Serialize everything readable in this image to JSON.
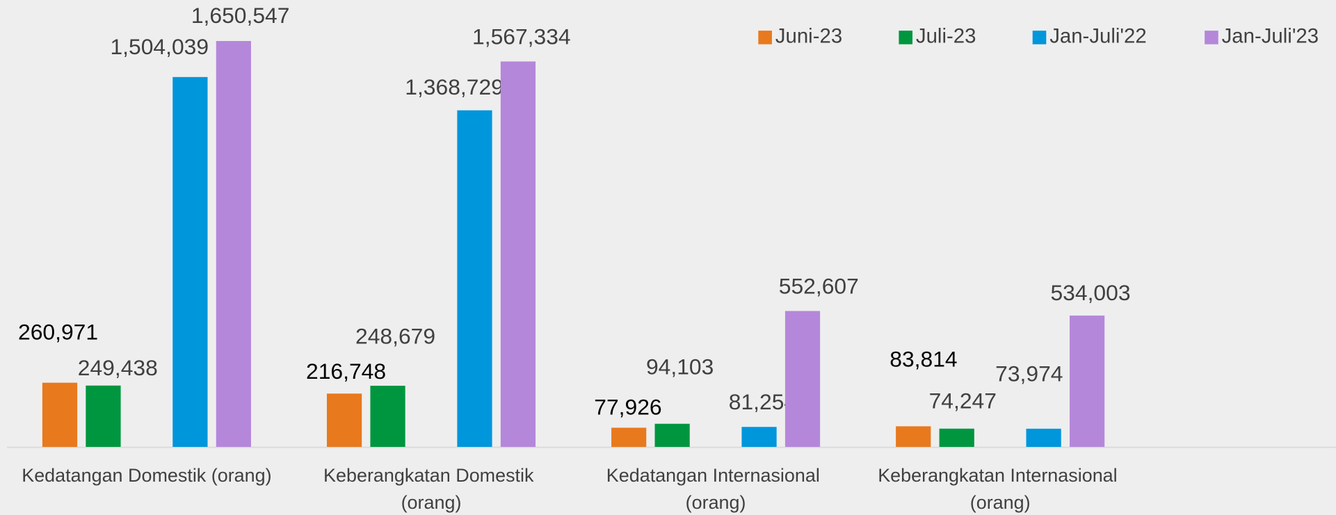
{
  "chart_data": {
    "type": "bar",
    "categories": [
      "Kedatangan Domestik (orang)",
      "Keberangkatan Domestik (orang)",
      "Kedatangan Internasional (orang)",
      "Keberangkatan Internasional (orang)"
    ],
    "series": [
      {
        "name": "Juni-23",
        "color": "#e8791d",
        "values": [
          260971,
          216748,
          77926,
          83814
        ],
        "value_labels": [
          "260,971",
          "216,748",
          "77,926",
          "83,814"
        ]
      },
      {
        "name": "Juli-23",
        "color": "#00963f",
        "values": [
          249438,
          248679,
          94103,
          74247
        ],
        "value_labels": [
          "249,438",
          "248,679",
          "94,103",
          "74,247"
        ]
      },
      {
        "name": "Jan-Juli'22",
        "color": "#0096dc",
        "values": [
          1504039,
          1368729,
          81254,
          73974
        ],
        "value_labels": [
          "1,504,039",
          "1,368,729",
          "81,254",
          "73,974"
        ]
      },
      {
        "name": "Jan-Juli'23",
        "color": "#b587db",
        "values": [
          1650547,
          1567334,
          552607,
          534003
        ],
        "value_labels": [
          "1,650,547",
          "1,567,334",
          "552,607",
          "534,003"
        ]
      }
    ],
    "ylim": [
      0,
      1800000
    ],
    "legend": "top-right"
  }
}
